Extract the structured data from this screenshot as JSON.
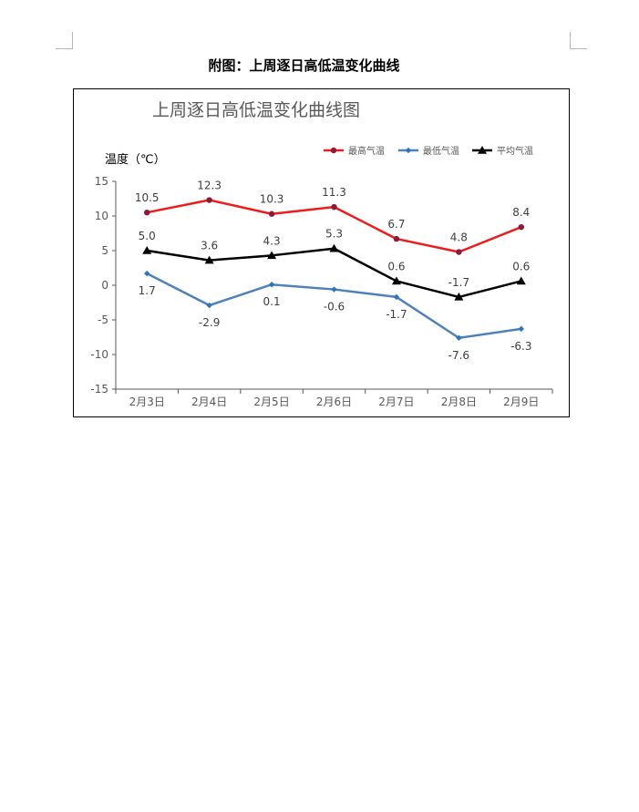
{
  "page": {
    "caption": "附图：上周逐日高低温变化曲线"
  },
  "chart_data": {
    "type": "line",
    "title": "上周逐日高低温变化曲线图",
    "ylabel": "温度（℃）",
    "xlabel": "",
    "ylim": [
      -15,
      15
    ],
    "yticks": [
      15,
      10,
      5,
      0,
      -5,
      -10,
      -15
    ],
    "y_tick_labels": [
      "15",
      "10",
      "5",
      "0",
      "-5",
      "-10",
      "-15"
    ],
    "grid": false,
    "legend_position": "top-right",
    "categories": [
      "2月3日",
      "2月4日",
      "2月5日",
      "2月6日",
      "2月7日",
      "2月8日",
      "2月9日"
    ],
    "series": [
      {
        "name": "最高气温",
        "color": "#ee1c1c",
        "marker_color": "#8b1a3a",
        "marker": "circle",
        "values": [
          10.5,
          12.3,
          10.3,
          11.3,
          6.7,
          4.8,
          8.4
        ],
        "labels": [
          "10.5",
          "12.3",
          "10.3",
          "11.3",
          "6.7",
          "4.8",
          "8.4"
        ],
        "label_pos": "above"
      },
      {
        "name": "最低气温",
        "color": "#4f81bd",
        "marker_color": "#2e75b6",
        "marker": "diamond",
        "values": [
          1.7,
          -2.9,
          0.1,
          -0.6,
          -1.7,
          -7.6,
          -6.3
        ],
        "labels": [
          "1.7",
          "-2.9",
          "0.1",
          "-0.6",
          "-1.7",
          "-7.6",
          "-6.3"
        ],
        "label_pos": "below"
      },
      {
        "name": "平均气温",
        "color": "#000000",
        "marker_color": "#000000",
        "marker": "triangle",
        "values": [
          5.0,
          3.6,
          4.3,
          5.3,
          0.6,
          -1.7,
          0.6
        ],
        "labels": [
          "5.0",
          "3.6",
          "4.3",
          "5.3",
          "0.6",
          "-1.7",
          "0.6"
        ],
        "label_pos": "above"
      }
    ]
  }
}
